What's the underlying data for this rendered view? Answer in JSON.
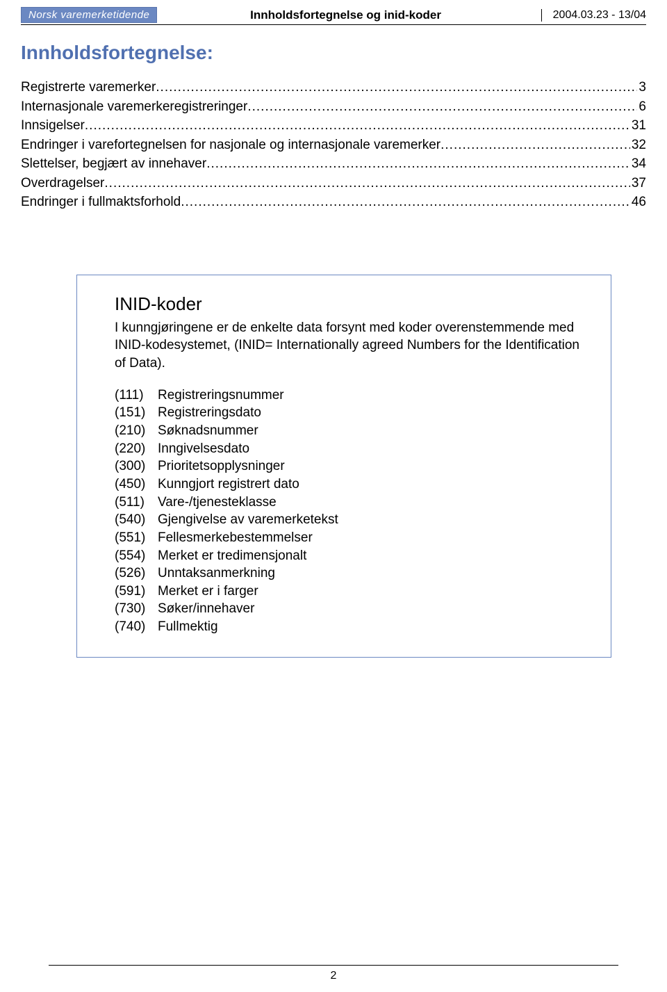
{
  "header": {
    "logo_text": "Norsk varemerketidende",
    "center_title": "Innholdsfortegnelse og inid-koder",
    "right_text": "2004.03.23 - 13/04"
  },
  "section_title": "Innholdsfortegnelse:",
  "toc": [
    {
      "label": "Registrerte varemerker",
      "page": "3"
    },
    {
      "label": "Internasjonale varemerkeregistreringer",
      "page": "6"
    },
    {
      "label": "Innsigelser",
      "page": "31"
    },
    {
      "label": "Endringer i varefortegnelsen for nasjonale og internasjonale varemerker",
      "page": "32"
    },
    {
      "label": "Slettelser, begjært av innehaver",
      "page": "34"
    },
    {
      "label": "Overdragelser",
      "page": "37"
    },
    {
      "label": "Endringer i fullmaktsforhold",
      "page": "46"
    }
  ],
  "box": {
    "title": "INID-koder",
    "intro": "I kunngjøringene er de enkelte data forsynt med koder overenstemmende med INID-kodesystemet, (INID= Internationally agreed Numbers for the Identification of Data).",
    "codes": [
      {
        "num": "(111)",
        "desc": "Registreringsnummer"
      },
      {
        "num": "(151)",
        "desc": "Registreringsdato"
      },
      {
        "num": "(210)",
        "desc": "Søknadsnummer"
      },
      {
        "num": "(220)",
        "desc": "Inngivelsesdato"
      },
      {
        "num": "(300)",
        "desc": "Prioritetsopplysninger"
      },
      {
        "num": "(450)",
        "desc": "Kunngjort registrert dato"
      },
      {
        "num": "(511)",
        "desc": "Vare-/tjenesteklasse"
      },
      {
        "num": "(540)",
        "desc": "Gjengivelse av varemerketekst"
      },
      {
        "num": "(551)",
        "desc": "Fellesmerkebestemmelser"
      },
      {
        "num": "(554)",
        "desc": "Merket er tredimensjonalt"
      },
      {
        "num": "(526)",
        "desc": "Unntaksanmerkning"
      },
      {
        "num": "(591)",
        "desc": "Merket er i farger"
      },
      {
        "num": "(730)",
        "desc": "Søker/innehaver"
      },
      {
        "num": "(740)",
        "desc": "Fullmektig"
      }
    ]
  },
  "footer_page": "2",
  "colors": {
    "accent": "#6b88c2",
    "title_color": "#5070b0",
    "text": "#000000",
    "background": "#ffffff"
  }
}
